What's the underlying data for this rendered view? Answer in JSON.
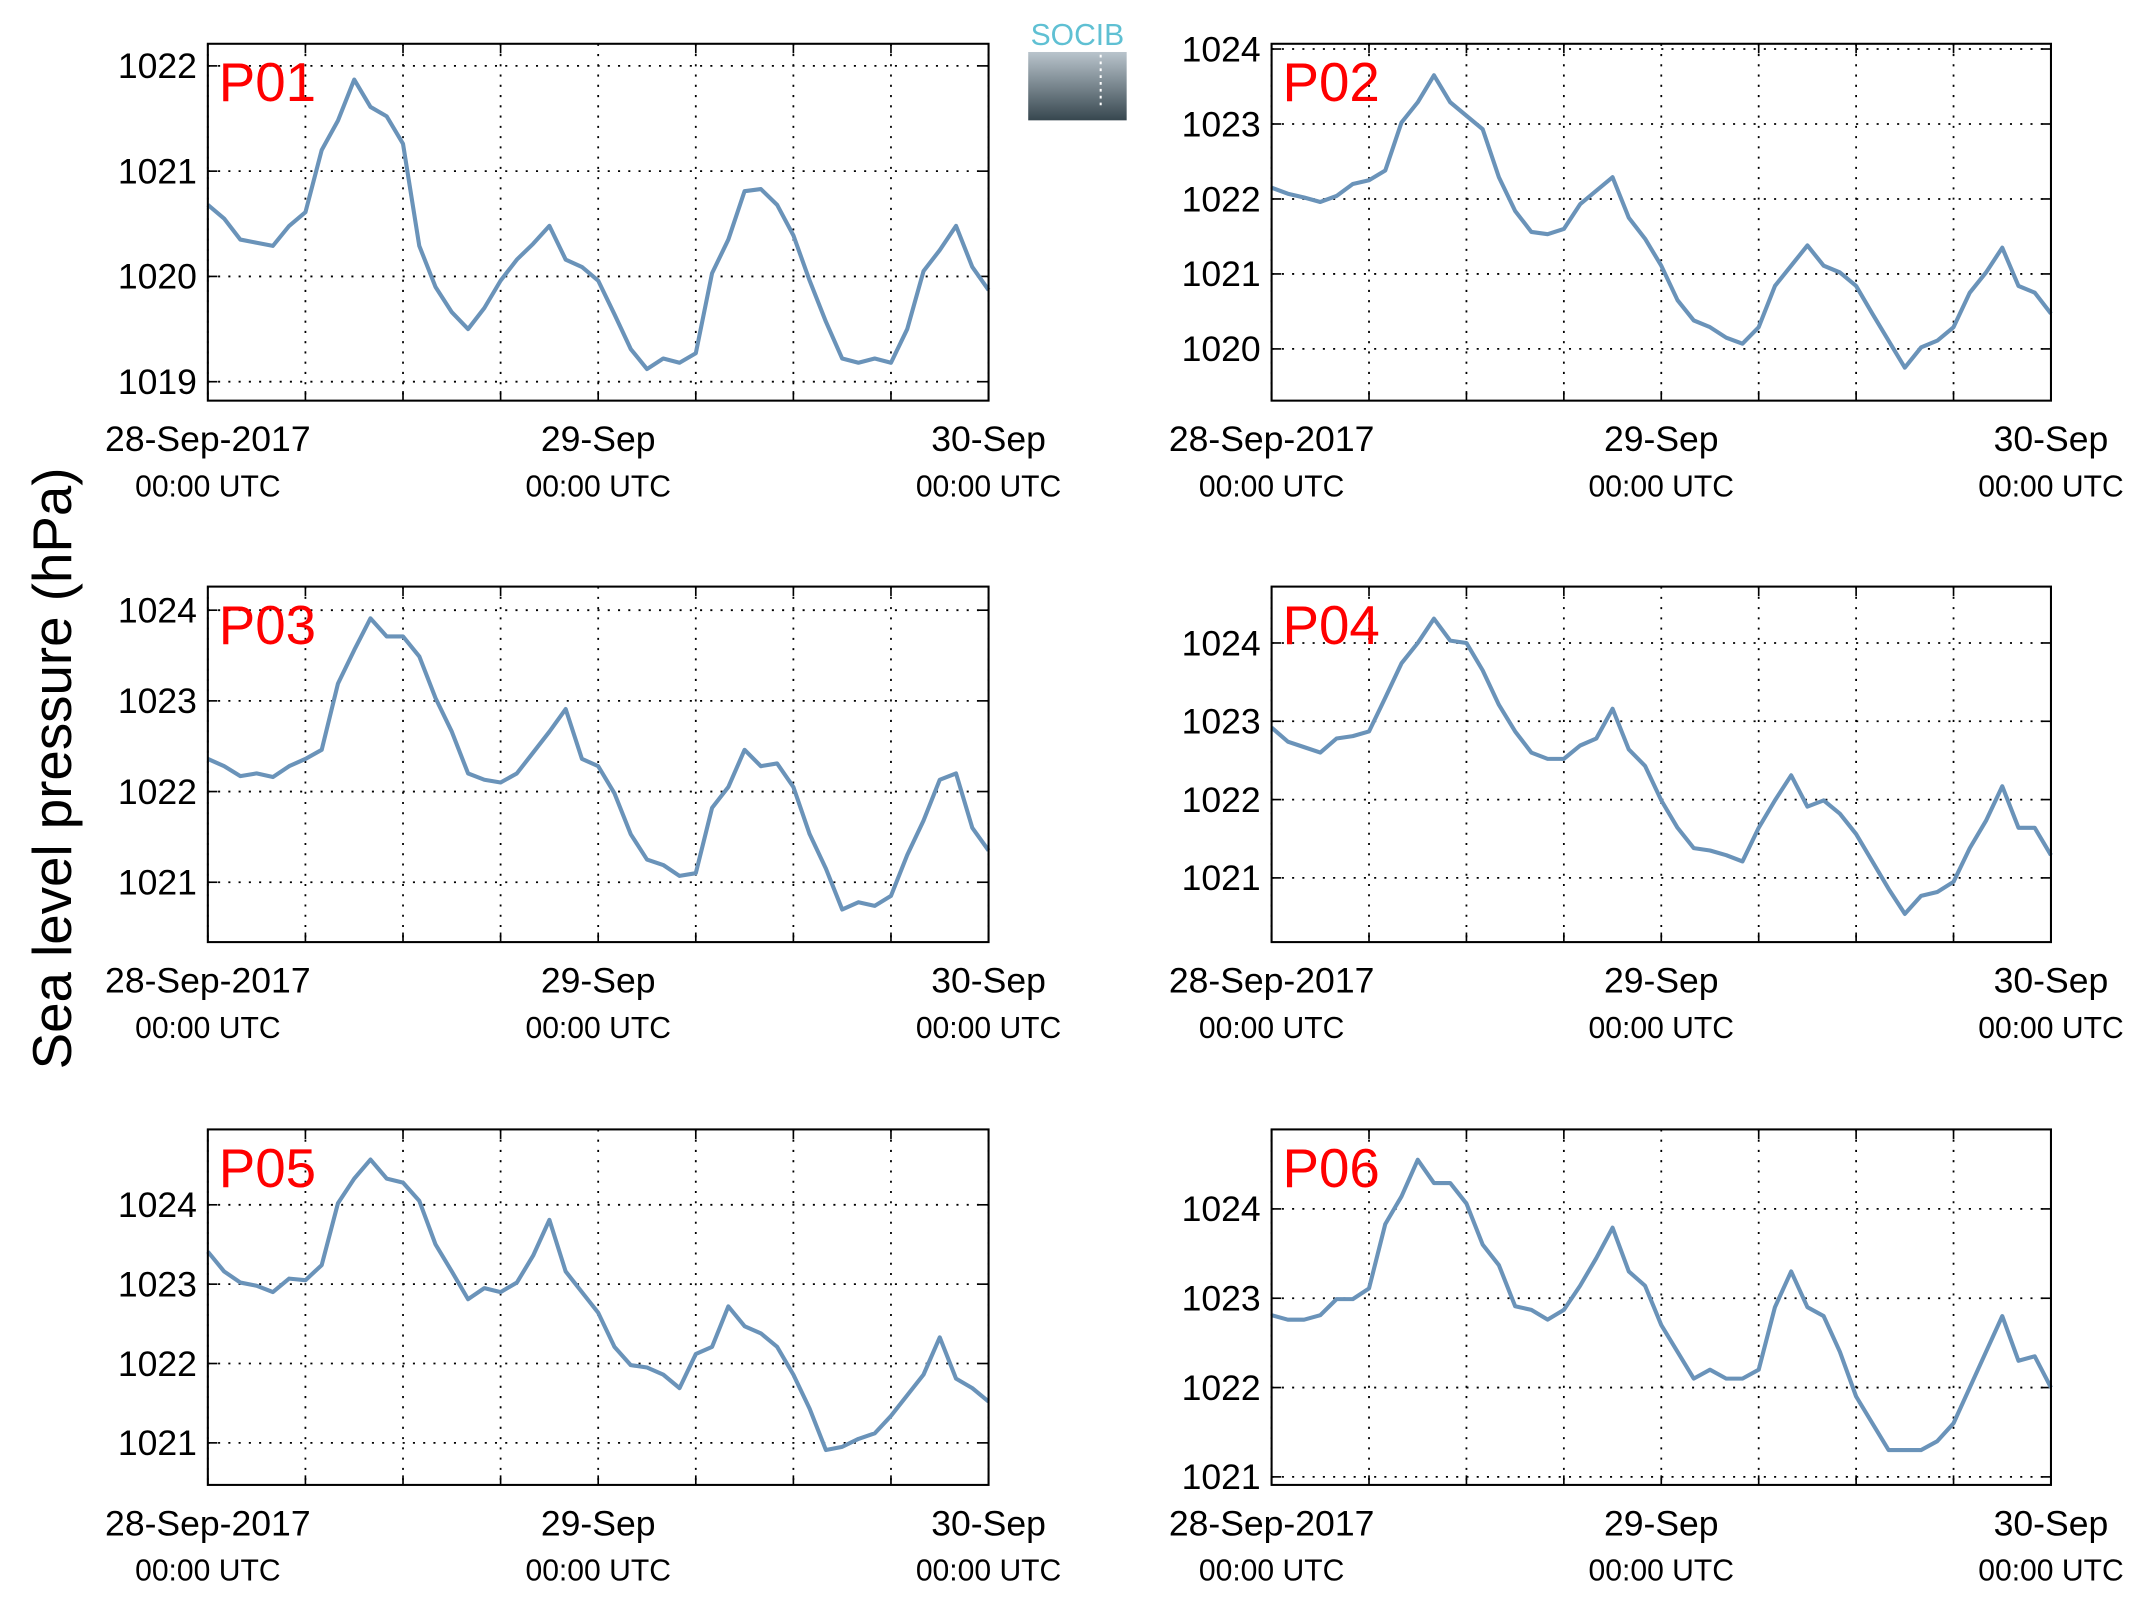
{
  "logo": "SOCIB",
  "ylabel": "Sea level pressure (hPa)",
  "chart_data": [
    {
      "type": "line",
      "title": "P01",
      "x": [
        0,
        1,
        2,
        3,
        4,
        5,
        6,
        7,
        8,
        9,
        10,
        11,
        12,
        13,
        14,
        15,
        16,
        17,
        18,
        19,
        20,
        21,
        22,
        23,
        24,
        25,
        26,
        27,
        28,
        29,
        30,
        31,
        32,
        33,
        34,
        35,
        36,
        37,
        38,
        39,
        40,
        41,
        42,
        43,
        44,
        45,
        46,
        47,
        48
      ],
      "xlim": [
        0,
        48
      ],
      "xticks": [
        {
          "value": 0,
          "label": "28-Sep-2017",
          "sublabel": "00:00 UTC"
        },
        {
          "value": 24,
          "label": "29-Sep",
          "sublabel": "00:00 UTC"
        },
        {
          "value": 48,
          "label": "30-Sep",
          "sublabel": "00:00 UTC"
        }
      ],
      "xgrid": [
        6,
        12,
        18,
        30,
        36,
        42
      ],
      "ylim": [
        1018.82,
        1022.21
      ],
      "yticks": [
        1019,
        1020,
        1021,
        1022
      ],
      "grid": true,
      "series": [
        {
          "color": "#6a93b9",
          "values": [
            1020.68,
            1020.55,
            1020.35,
            1020.32,
            1020.29,
            1020.48,
            1020.61,
            1021.2,
            1021.48,
            1021.87,
            1021.61,
            1021.52,
            1021.26,
            1020.29,
            1019.9,
            1019.66,
            1019.5,
            1019.7,
            1019.96,
            1020.16,
            1020.31,
            1020.48,
            1020.16,
            1020.09,
            1019.96,
            1019.64,
            1019.31,
            1019.12,
            1019.22,
            1019.18,
            1019.27,
            1020.03,
            1020.35,
            1020.81,
            1020.83,
            1020.68,
            1020.39,
            1019.96,
            1019.57,
            1019.22,
            1019.18,
            1019.22,
            1019.18,
            1019.5,
            1020.05,
            1020.25,
            1020.48,
            1020.09,
            1019.87
          ]
        }
      ]
    },
    {
      "type": "line",
      "title": "P02",
      "x": [
        0,
        1,
        2,
        3,
        4,
        5,
        6,
        7,
        8,
        9,
        10,
        11,
        12,
        13,
        14,
        15,
        16,
        17,
        18,
        19,
        20,
        21,
        22,
        23,
        24,
        25,
        26,
        27,
        28,
        29,
        30,
        31,
        32,
        33,
        34,
        35,
        36,
        37,
        38,
        39,
        40,
        41,
        42,
        43,
        44,
        45,
        46,
        47,
        48
      ],
      "xlim": [
        0,
        48
      ],
      "xticks": [
        {
          "value": 0,
          "label": "28-Sep-2017",
          "sublabel": "00:00 UTC"
        },
        {
          "value": 24,
          "label": "29-Sep",
          "sublabel": "00:00 UTC"
        },
        {
          "value": 48,
          "label": "30-Sep",
          "sublabel": "00:00 UTC"
        }
      ],
      "xgrid": [
        6,
        12,
        18,
        30,
        36,
        42
      ],
      "ylim": [
        1019.31,
        1024.07
      ],
      "yticks": [
        1020,
        1021,
        1022,
        1023,
        1024
      ],
      "grid": true,
      "series": [
        {
          "color": "#6a93b9",
          "values": [
            1022.15,
            1022.07,
            1022.02,
            1021.96,
            1022.04,
            1022.2,
            1022.25,
            1022.38,
            1023.02,
            1023.29,
            1023.65,
            1023.29,
            1023.11,
            1022.93,
            1022.29,
            1021.84,
            1021.56,
            1021.53,
            1021.6,
            1021.93,
            1022.11,
            1022.29,
            1021.75,
            1021.47,
            1021.11,
            1020.65,
            1020.38,
            1020.29,
            1020.15,
            1020.07,
            1020.29,
            1020.84,
            1021.11,
            1021.38,
            1021.11,
            1021.02,
            1020.84,
            1020.47,
            1020.11,
            1019.75,
            1020.02,
            1020.11,
            1020.29,
            1020.75,
            1021.02,
            1021.35,
            1020.84,
            1020.75,
            1020.47
          ]
        }
      ]
    },
    {
      "type": "line",
      "title": "P03",
      "x": [
        0,
        1,
        2,
        3,
        4,
        5,
        6,
        7,
        8,
        9,
        10,
        11,
        12,
        13,
        14,
        15,
        16,
        17,
        18,
        19,
        20,
        21,
        22,
        23,
        24,
        25,
        26,
        27,
        28,
        29,
        30,
        31,
        32,
        33,
        34,
        35,
        36,
        37,
        38,
        39,
        40,
        41,
        42,
        43,
        44,
        45,
        46,
        47,
        48
      ],
      "xlim": [
        0,
        48
      ],
      "xticks": [
        {
          "value": 0,
          "label": "28-Sep-2017",
          "sublabel": "00:00 UTC"
        },
        {
          "value": 24,
          "label": "29-Sep",
          "sublabel": "00:00 UTC"
        },
        {
          "value": 48,
          "label": "30-Sep",
          "sublabel": "00:00 UTC"
        }
      ],
      "xgrid": [
        6,
        12,
        18,
        30,
        36,
        42
      ],
      "ylim": [
        1020.34,
        1024.26
      ],
      "yticks": [
        1021,
        1022,
        1023,
        1024
      ],
      "grid": true,
      "series": [
        {
          "color": "#6a93b9",
          "values": [
            1022.36,
            1022.28,
            1022.17,
            1022.2,
            1022.16,
            1022.28,
            1022.36,
            1022.46,
            1023.19,
            1023.56,
            1023.91,
            1023.71,
            1023.71,
            1023.49,
            1023.03,
            1022.66,
            1022.2,
            1022.13,
            1022.1,
            1022.2,
            1022.43,
            1022.66,
            1022.91,
            1022.36,
            1022.28,
            1021.98,
            1021.53,
            1021.25,
            1021.19,
            1021.07,
            1021.1,
            1021.82,
            1022.05,
            1022.46,
            1022.28,
            1022.31,
            1022.05,
            1021.53,
            1021.15,
            1020.7,
            1020.78,
            1020.74,
            1020.85,
            1021.3,
            1021.68,
            1022.13,
            1022.2,
            1021.6,
            1021.35
          ]
        }
      ]
    },
    {
      "type": "line",
      "title": "P04",
      "x": [
        0,
        1,
        2,
        3,
        4,
        5,
        6,
        7,
        8,
        9,
        10,
        11,
        12,
        13,
        14,
        15,
        16,
        17,
        18,
        19,
        20,
        21,
        22,
        23,
        24,
        25,
        26,
        27,
        28,
        29,
        30,
        31,
        32,
        33,
        34,
        35,
        36,
        37,
        38,
        39,
        40,
        41,
        42,
        43,
        44,
        45,
        46,
        47,
        48
      ],
      "xlim": [
        0,
        48
      ],
      "xticks": [
        {
          "value": 0,
          "label": "28-Sep-2017",
          "sublabel": "00:00 UTC"
        },
        {
          "value": 24,
          "label": "29-Sep",
          "sublabel": "00:00 UTC"
        },
        {
          "value": 48,
          "label": "30-Sep",
          "sublabel": "00:00 UTC"
        }
      ],
      "xgrid": [
        6,
        12,
        18,
        30,
        36,
        42
      ],
      "ylim": [
        1020.18,
        1024.72
      ],
      "yticks": [
        1021,
        1022,
        1023,
        1024
      ],
      "grid": true,
      "series": [
        {
          "color": "#6a93b9",
          "values": [
            1022.92,
            1022.74,
            1022.67,
            1022.6,
            1022.78,
            1022.81,
            1022.87,
            1023.3,
            1023.74,
            1024.0,
            1024.31,
            1024.03,
            1024.0,
            1023.65,
            1023.21,
            1022.87,
            1022.6,
            1022.52,
            1022.52,
            1022.69,
            1022.78,
            1023.16,
            1022.64,
            1022.43,
            1021.99,
            1021.64,
            1021.38,
            1021.35,
            1021.29,
            1021.21,
            1021.64,
            1021.99,
            1022.31,
            1021.91,
            1021.99,
            1021.82,
            1021.56,
            1021.21,
            1020.86,
            1020.54,
            1020.77,
            1020.82,
            1020.95,
            1021.38,
            1021.73,
            1022.17,
            1021.64,
            1021.64,
            1021.29
          ]
        }
      ]
    },
    {
      "type": "line",
      "title": "P05",
      "x": [
        0,
        1,
        2,
        3,
        4,
        5,
        6,
        7,
        8,
        9,
        10,
        11,
        12,
        13,
        14,
        15,
        16,
        17,
        18,
        19,
        20,
        21,
        22,
        23,
        24,
        25,
        26,
        27,
        28,
        29,
        30,
        31,
        32,
        33,
        34,
        35,
        36,
        37,
        38,
        39,
        40,
        41,
        42,
        43,
        44,
        45,
        46,
        47,
        48
      ],
      "xlim": [
        0,
        48
      ],
      "xticks": [
        {
          "value": 0,
          "label": "28-Sep-2017",
          "sublabel": "00:00 UTC"
        },
        {
          "value": 24,
          "label": "29-Sep",
          "sublabel": "00:00 UTC"
        },
        {
          "value": 48,
          "label": "30-Sep",
          "sublabel": "00:00 UTC"
        }
      ],
      "xgrid": [
        6,
        12,
        18,
        30,
        36,
        42
      ],
      "ylim": [
        1020.47,
        1024.95
      ],
      "yticks": [
        1021,
        1022,
        1023,
        1024
      ],
      "grid": true,
      "series": [
        {
          "color": "#6a93b9",
          "values": [
            1023.41,
            1023.16,
            1023.02,
            1022.98,
            1022.9,
            1023.07,
            1023.05,
            1023.24,
            1024.02,
            1024.33,
            1024.57,
            1024.33,
            1024.28,
            1024.05,
            1023.5,
            1023.16,
            1022.81,
            1022.95,
            1022.9,
            1023.02,
            1023.36,
            1023.81,
            1023.16,
            1022.9,
            1022.64,
            1022.21,
            1021.98,
            1021.95,
            1021.86,
            1021.69,
            1022.12,
            1022.21,
            1022.72,
            1022.47,
            1022.38,
            1022.21,
            1021.86,
            1021.43,
            1020.91,
            1020.95,
            1021.05,
            1021.12,
            1021.34,
            1021.6,
            1021.86,
            1022.33,
            1021.81,
            1021.69,
            1021.52
          ]
        }
      ]
    },
    {
      "type": "line",
      "title": "P06",
      "x": [
        0,
        1,
        2,
        3,
        4,
        5,
        6,
        7,
        8,
        9,
        10,
        11,
        12,
        13,
        14,
        15,
        16,
        17,
        18,
        19,
        20,
        21,
        22,
        23,
        24,
        25,
        26,
        27,
        28,
        29,
        30,
        31,
        32,
        33,
        34,
        35,
        36,
        37,
        38,
        39,
        40,
        41,
        42,
        43,
        44,
        45,
        46,
        47,
        48
      ],
      "xlim": [
        0,
        48
      ],
      "xticks": [
        {
          "value": 0,
          "label": "28-Sep-2017",
          "sublabel": "00:00 UTC"
        },
        {
          "value": 24,
          "label": "29-Sep",
          "sublabel": "00:00 UTC"
        },
        {
          "value": 48,
          "label": "30-Sep",
          "sublabel": "00:00 UTC"
        }
      ],
      "xgrid": [
        6,
        12,
        18,
        30,
        36,
        42
      ],
      "ylim": [
        1020.91,
        1024.89
      ],
      "yticks": [
        1021,
        1022,
        1023,
        1024
      ],
      "grid": true,
      "series": [
        {
          "color": "#6a93b9",
          "values": [
            1022.81,
            1022.76,
            1022.76,
            1022.81,
            1022.99,
            1022.99,
            1023.11,
            1023.83,
            1024.14,
            1024.55,
            1024.29,
            1024.29,
            1024.06,
            1023.6,
            1023.37,
            1022.91,
            1022.87,
            1022.76,
            1022.87,
            1023.14,
            1023.45,
            1023.79,
            1023.3,
            1023.14,
            1022.7,
            1022.4,
            1022.1,
            1022.2,
            1022.1,
            1022.1,
            1022.2,
            1022.9,
            1023.3,
            1022.9,
            1022.8,
            1022.4,
            1021.9,
            1021.6,
            1021.3,
            1021.3,
            1021.3,
            1021.4,
            1021.6,
            1022.0,
            1022.4,
            1022.8,
            1022.3,
            1022.35,
            1022.0
          ]
        }
      ]
    }
  ]
}
